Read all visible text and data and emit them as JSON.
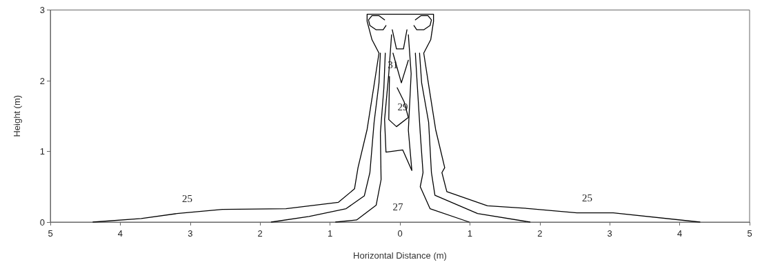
{
  "chart_data": {
    "type": "line",
    "xlabel": "Horizontal Distance (m)",
    "ylabel": "Height (m)",
    "xlim": [
      -5,
      5
    ],
    "xticks": [
      {
        "value": -5,
        "label": "5"
      },
      {
        "value": -4,
        "label": "4"
      },
      {
        "value": -3,
        "label": "3"
      },
      {
        "value": -2,
        "label": "2"
      },
      {
        "value": -1,
        "label": "1"
      },
      0,
      1,
      2,
      3,
      4,
      5
    ],
    "ylim": [
      0,
      3
    ],
    "yticks": [
      0,
      1,
      2,
      3
    ],
    "grid": false,
    "marker": "none",
    "line_style": "solid",
    "series": [
      {
        "color": "#000000",
        "x": [
          -4.39,
          -3.7,
          -3.19,
          -2.54,
          -1.63,
          -0.88,
          -0.65,
          -0.6,
          -0.47,
          -0.37,
          -0.3,
          -0.4,
          -0.47,
          -0.47,
          0.48,
          0.48,
          0.44,
          0.34,
          0.41,
          0.51,
          0.64,
          0.6,
          0.67,
          1.25,
          1.86,
          2.53,
          3.05,
          4.29
        ],
        "values": [
          0,
          0.05,
          0.12,
          0.18,
          0.19,
          0.28,
          0.47,
          0.77,
          1.31,
          1.94,
          2.39,
          2.58,
          2.84,
          2.94,
          2.94,
          2.84,
          2.58,
          2.39,
          1.94,
          1.31,
          0.77,
          0.7,
          0.43,
          0.23,
          0.19,
          0.13,
          0.13,
          0
        ]
      },
      {
        "color": "#000000",
        "x": [
          -1.84,
          -1.3,
          -0.77,
          -0.51,
          -0.43,
          -0.37,
          -0.3,
          -0.28
        ],
        "values": [
          0,
          0.08,
          0.19,
          0.37,
          0.7,
          1.41,
          1.97,
          2.39
        ]
      },
      {
        "color": "#000000",
        "x": [
          -0.92,
          -0.62,
          -0.34,
          -0.27,
          -0.28,
          -0.23,
          -0.21
        ],
        "values": [
          0,
          0.03,
          0.24,
          0.6,
          1.26,
          1.9,
          2.39
        ]
      },
      {
        "color": "#000000",
        "x": [
          1.86,
          1.11,
          0.5,
          0.45,
          0.41,
          0.31,
          0.28
        ],
        "values": [
          0,
          0.12,
          0.38,
          0.7,
          1.41,
          1.97,
          2.39
        ]
      },
      {
        "color": "#000000",
        "x": [
          0.99,
          0.43,
          0.29,
          0.33,
          0.29,
          0.25,
          0.22
        ],
        "values": [
          0,
          0.19,
          0.5,
          0.7,
          1.26,
          1.9,
          2.39
        ]
      },
      {
        "color": "#000000",
        "x": [
          -0.12,
          -0.16,
          -0.22,
          -0.2,
          0.04,
          0.17,
          0.12,
          0.16,
          0.12
        ],
        "values": [
          2.65,
          2.1,
          1.45,
          0.99,
          1.02,
          0.73,
          1.3,
          2.1,
          2.65
        ]
      },
      {
        "color": "#000000",
        "x": [
          -0.15,
          -0.16,
          -0.05,
          0.12,
          0.06,
          -0.04
        ],
        "values": [
          2.06,
          1.45,
          1.35,
          1.48,
          1.7,
          1.9
        ]
      },
      {
        "color": "#000000",
        "x": [
          -0.1,
          0.02,
          0.12
        ],
        "values": [
          2.39,
          1.97,
          2.29
        ]
      },
      {
        "color": "#000000",
        "x": [
          -0.11,
          -0.05,
          0.05,
          0.1
        ],
        "values": [
          2.72,
          2.45,
          2.45,
          2.72
        ]
      },
      {
        "color": "#000000",
        "x": [
          -0.2,
          -0.24,
          -0.34,
          -0.43,
          -0.45,
          -0.4,
          -0.3,
          -0.22
        ],
        "values": [
          2.78,
          2.72,
          2.72,
          2.78,
          2.86,
          2.92,
          2.92,
          2.86
        ]
      },
      {
        "color": "#000000",
        "x": [
          0.2,
          0.24,
          0.34,
          0.43,
          0.45,
          0.4,
          0.3,
          0.22
        ],
        "values": [
          2.78,
          2.72,
          2.72,
          2.78,
          2.86,
          2.92,
          2.92,
          2.86
        ]
      }
    ],
    "annotations": [
      {
        "text": "25",
        "x": -3.19,
        "y": 0.12
      },
      {
        "text": "25",
        "x": 2.53,
        "y": 0.13
      },
      "27",
      "29",
      "31"
    ]
  }
}
